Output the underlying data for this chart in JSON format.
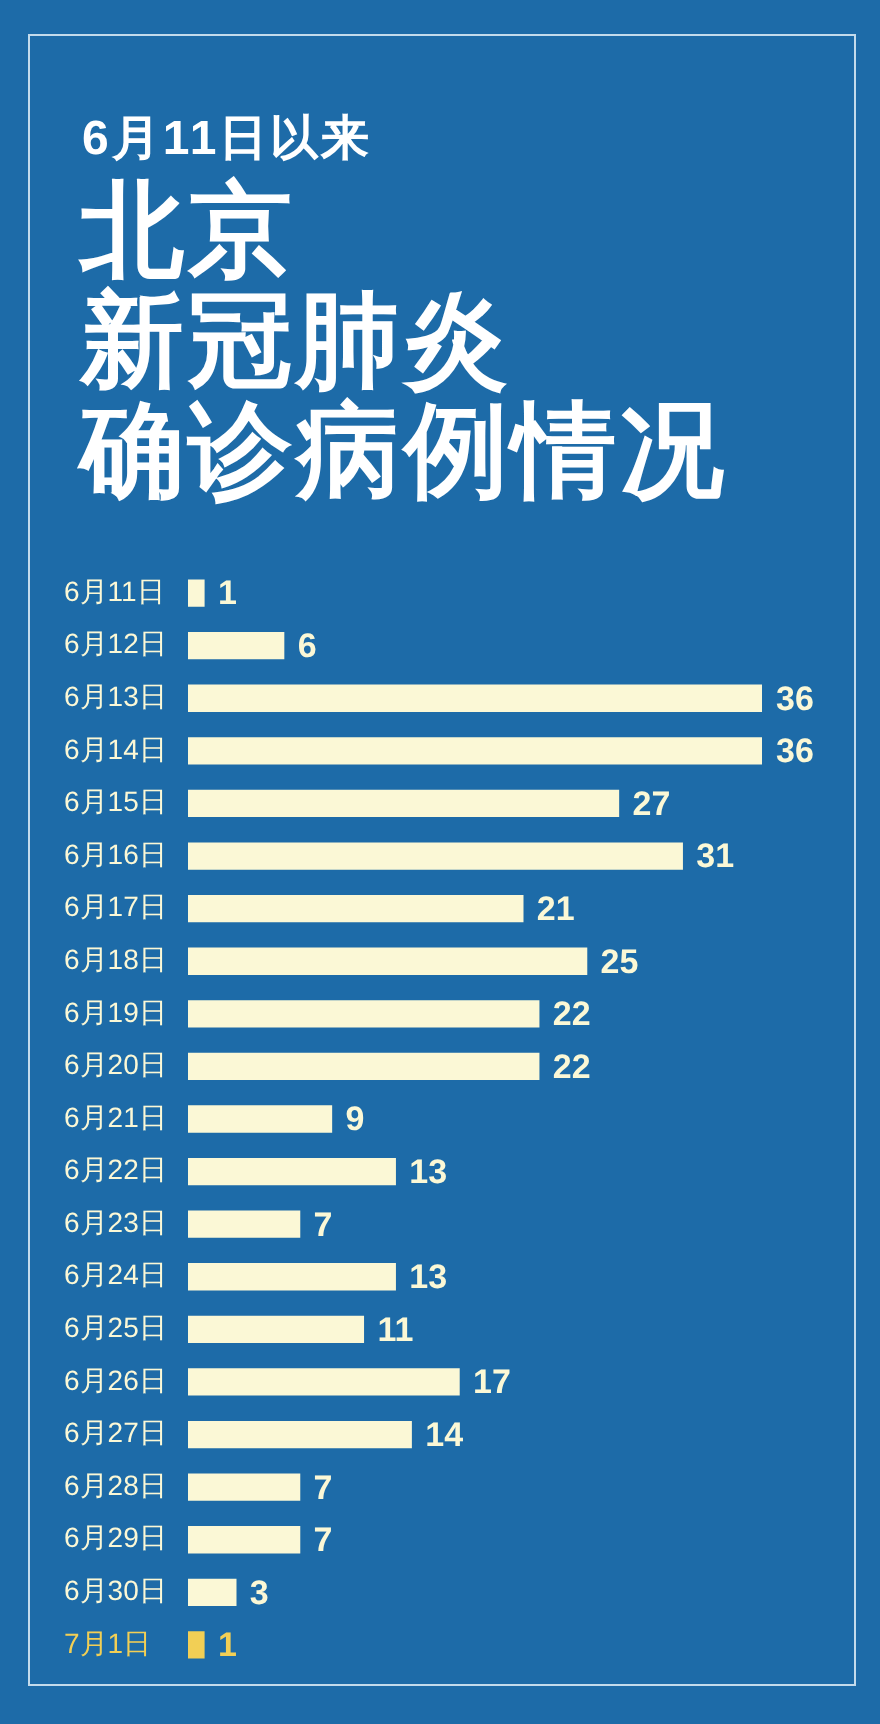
{
  "chart_data": {
    "type": "bar",
    "orientation": "horizontal",
    "subtitle": "6月11日以来",
    "title": "北京新冠肺炎确诊病例情况",
    "categories": [
      "6月11日",
      "6月12日",
      "6月13日",
      "6月14日",
      "6月15日",
      "6月16日",
      "6月17日",
      "6月18日",
      "6月19日",
      "6月20日",
      "6月21日",
      "6月22日",
      "6月23日",
      "6月24日",
      "6月25日",
      "6月26日",
      "6月27日",
      "6月28日",
      "6月29日",
      "6月30日",
      "7月1日"
    ],
    "values": [
      1,
      6,
      36,
      36,
      27,
      31,
      21,
      25,
      22,
      22,
      9,
      13,
      7,
      13,
      11,
      17,
      14,
      7,
      7,
      3,
      1
    ],
    "colors": [
      "#fbf8d6",
      "#fbf8d6",
      "#fbf8d6",
      "#fbf8d6",
      "#fbf8d6",
      "#fbf8d6",
      "#fbf8d6",
      "#fbf8d6",
      "#fbf8d6",
      "#fbf8d6",
      "#fbf8d6",
      "#fbf8d6",
      "#fbf8d6",
      "#fbf8d6",
      "#fbf8d6",
      "#fbf8d6",
      "#fbf8d6",
      "#fbf8d6",
      "#fbf8d6",
      "#fbf8d6",
      "#f2cf55"
    ],
    "data_labels": true,
    "tick_labels": "y"
  }
}
